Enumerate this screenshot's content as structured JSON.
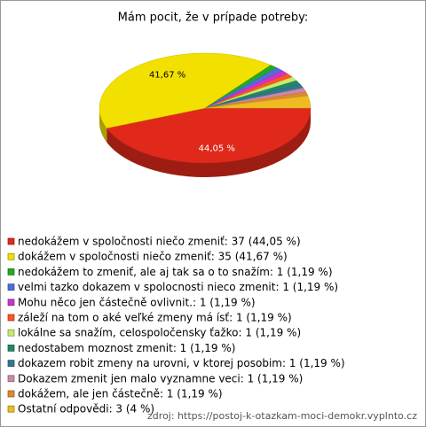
{
  "chart_data": {
    "type": "pie",
    "title": "Mám pocit, že v prípade potreby:",
    "categories": [
      "nedokážem v spoločnosti niečo zmeniť: 37 (44,05 %)",
      "dokážem v spoločnosti niečo zmeniť: 35 (41,67 %)",
      "nedokážem to zmeniť, ale aj tak sa o to snažím: 1 (1,19 %)",
      "velmi tazko dokazem v spolocnosti nieco zmenit: 1 (1,19 %)",
      "Mohu něco jen částečně ovlivnit.: 1 (1,19 %)",
      "záleží na tom o aké veľké zmeny má ísť: 1 (1,19 %)",
      "lokálne sa snažím, celospoločensky ťažko: 1 (1,19 %)",
      "nedostabem moznost zmenit: 1 (1,19 %)",
      "dokazem robit zmeny na urovni, v ktorej posobim: 1 (1,19 %)",
      "Dokazem zmenit jen malo vyznamne veci: 1 (1,19 %)",
      "dokážem, ale jen částečně: 1 (1,19 %)",
      "Ostatní odpovědi: 3 (4 %)"
    ],
    "values": [
      37,
      35,
      1,
      1,
      1,
      1,
      1,
      1,
      1,
      1,
      1,
      3
    ],
    "value_labels": [
      "44,05 %",
      "41,67 %",
      null,
      null,
      null,
      null,
      null,
      null,
      null,
      null,
      null,
      null
    ],
    "colors": [
      "#e0291b",
      "#f2e000",
      "#22aa22",
      "#4d6fd9",
      "#cc33cc",
      "#ff5522",
      "#c8ec6a",
      "#228866",
      "#33778f",
      "#cc88aa",
      "#dd8833",
      "#eebb22"
    ],
    "source": "zdroj: https://postoj-k-otazkam-moci-demokr.vyplnto.cz"
  }
}
